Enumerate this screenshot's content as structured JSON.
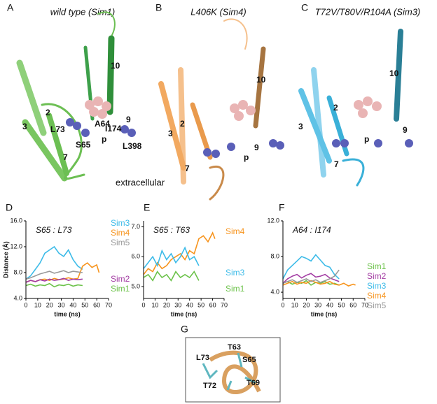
{
  "panels": [
    {
      "letter": "A",
      "title": "wild type (Sim1)",
      "labels": [
        "10",
        "2",
        "3",
        "I174",
        "A64",
        "L73",
        "S65",
        "7",
        "p",
        "9",
        "L398",
        "extracellular"
      ]
    },
    {
      "letter": "B",
      "title": "L406K (Sim4)",
      "labels": [
        "10",
        "3",
        "2",
        "9",
        "p",
        "7"
      ]
    },
    {
      "letter": "C",
      "title": "T72V/T80V/R104A (Sim3)",
      "labels": [
        "10",
        "2",
        "3",
        "p",
        "9",
        "7"
      ]
    },
    {
      "letter": "G",
      "labels": [
        "T63",
        "L73",
        "S65",
        "T72",
        "T69"
      ]
    }
  ],
  "chart_data": [
    {
      "type": "line",
      "letter": "D",
      "annotation": "S65 : L73",
      "ylabel": "Distance (Å)",
      "xlabel": "time (ns)",
      "xlim": [
        0,
        70
      ],
      "xticks": [
        0,
        10,
        20,
        30,
        40,
        50,
        60,
        70
      ],
      "ylim": [
        4,
        16
      ],
      "yticks": [
        {
          "value": 4,
          "label": "4.0"
        },
        {
          "value": 8,
          "label": "8.0"
        },
        {
          "value": 12,
          "label": "12.0"
        },
        {
          "value": 16,
          "label": "16.0"
        }
      ],
      "series": [
        {
          "name": "Sim3",
          "color": "#3cbbe8",
          "x": [
            0,
            4,
            8,
            12,
            16,
            20,
            24,
            28,
            32,
            36,
            40,
            44,
            48
          ],
          "values": [
            7.0,
            7.5,
            8.5,
            9.5,
            11.0,
            11.5,
            12.0,
            11.0,
            10.5,
            11.5,
            10.0,
            9.0,
            8.5
          ]
        },
        {
          "name": "Sim4",
          "color": "#f7941d",
          "x": [
            0,
            4,
            8,
            12,
            16,
            20,
            24,
            28,
            32,
            36,
            40,
            44,
            48,
            52,
            56,
            60,
            62
          ],
          "values": [
            6.5,
            6.8,
            6.6,
            6.9,
            7.0,
            6.8,
            7.1,
            6.9,
            7.0,
            7.2,
            7.0,
            7.1,
            9.0,
            9.5,
            8.8,
            9.2,
            8.0
          ]
        },
        {
          "name": "Sim5",
          "color": "#9a9a9a",
          "x": [
            0,
            4,
            8,
            12,
            16,
            20,
            24,
            28,
            32,
            36,
            40,
            44,
            48
          ],
          "values": [
            7.0,
            7.2,
            7.5,
            7.8,
            8.0,
            8.2,
            7.9,
            8.1,
            8.3,
            8.0,
            8.2,
            8.1,
            8.0
          ]
        },
        {
          "name": "Sim2",
          "color": "#a33ca3",
          "x": [
            0,
            4,
            8,
            12,
            16,
            20,
            24,
            28,
            32,
            36,
            40,
            44,
            48
          ],
          "values": [
            6.5,
            6.8,
            6.6,
            6.9,
            6.7,
            7.0,
            6.8,
            6.9,
            7.1,
            6.8,
            7.0,
            6.9,
            7.0
          ]
        },
        {
          "name": "Sim1",
          "color": "#6cc24a",
          "x": [
            0,
            4,
            8,
            12,
            16,
            20,
            24,
            28,
            32,
            36,
            40,
            44,
            48
          ],
          "values": [
            6.0,
            6.2,
            5.9,
            6.1,
            6.0,
            6.3,
            5.8,
            6.1,
            6.0,
            6.2,
            5.9,
            6.1,
            6.0
          ]
        }
      ]
    },
    {
      "type": "line",
      "letter": "E",
      "annotation": "S65 : T63",
      "xlabel": "time (ns)",
      "xlim": [
        0,
        70
      ],
      "xticks": [
        0,
        10,
        20,
        30,
        40,
        50,
        60,
        70
      ],
      "ylim": [
        4.6,
        7.2
      ],
      "yticks": [
        {
          "value": 5,
          "label": "5.0"
        },
        {
          "value": 6,
          "label": "6.0"
        },
        {
          "value": 7,
          "label": "7.0"
        }
      ],
      "series": [
        {
          "name": "Sim4",
          "color": "#f7941d",
          "x": [
            0,
            4,
            8,
            12,
            16,
            20,
            24,
            28,
            32,
            36,
            40,
            44,
            48,
            52,
            56,
            60,
            62
          ],
          "values": [
            5.4,
            5.6,
            5.5,
            5.8,
            5.6,
            5.7,
            5.9,
            6.0,
            6.1,
            5.9,
            6.2,
            6.1,
            6.6,
            6.7,
            6.5,
            6.8,
            6.6
          ]
        },
        {
          "name": "Sim3",
          "color": "#3cbbe8",
          "x": [
            0,
            4,
            8,
            12,
            16,
            20,
            24,
            28,
            32,
            36,
            40,
            44,
            48
          ],
          "values": [
            5.6,
            5.8,
            6.0,
            5.7,
            6.2,
            5.9,
            6.1,
            5.8,
            6.0,
            6.3,
            5.9,
            6.0,
            5.7
          ]
        },
        {
          "name": "Sim1",
          "color": "#6cc24a",
          "x": [
            0,
            4,
            8,
            12,
            16,
            20,
            24,
            28,
            32,
            36,
            40,
            44,
            48
          ],
          "values": [
            5.3,
            5.4,
            5.2,
            5.5,
            5.3,
            5.4,
            5.2,
            5.5,
            5.3,
            5.4,
            5.3,
            5.5,
            5.2
          ]
        }
      ]
    },
    {
      "type": "line",
      "letter": "F",
      "annotation": "A64 : I174",
      "xlabel": "time (ns)",
      "xlim": [
        0,
        70
      ],
      "xticks": [
        0,
        10,
        20,
        30,
        40,
        50,
        60,
        70
      ],
      "ylim": [
        3.3,
        12
      ],
      "yticks": [
        {
          "value": 4,
          "label": "4.0"
        },
        {
          "value": 8,
          "label": "8.0"
        },
        {
          "value": 12,
          "label": "12.0"
        }
      ],
      "series": [
        {
          "name": "Sim1",
          "color": "#6cc24a",
          "x": [
            0,
            4,
            8,
            12,
            16,
            20,
            24,
            28,
            32,
            36,
            40,
            44,
            48
          ],
          "values": [
            5.0,
            5.2,
            4.9,
            5.1,
            5.0,
            5.3,
            4.8,
            5.1,
            5.0,
            5.2,
            4.9,
            5.0,
            4.8
          ]
        },
        {
          "name": "Sim2",
          "color": "#a33ca3",
          "x": [
            0,
            4,
            8,
            12,
            16,
            20,
            24,
            28,
            32,
            36,
            40,
            44,
            48
          ],
          "values": [
            5.0,
            5.5,
            5.8,
            6.0,
            5.6,
            5.9,
            6.1,
            5.7,
            5.8,
            6.0,
            5.6,
            5.4,
            5.2
          ]
        },
        {
          "name": "Sim3",
          "color": "#3cbbe8",
          "x": [
            0,
            4,
            8,
            12,
            16,
            20,
            24,
            28,
            32,
            36,
            40,
            44,
            48
          ],
          "values": [
            5.5,
            6.5,
            7.0,
            7.5,
            8.0,
            7.8,
            7.5,
            8.2,
            7.6,
            7.0,
            6.8,
            6.0,
            5.5
          ]
        },
        {
          "name": "Sim4",
          "color": "#f7941d",
          "x": [
            0,
            4,
            8,
            12,
            16,
            20,
            24,
            28,
            32,
            36,
            40,
            44,
            48,
            52,
            56,
            60,
            62
          ],
          "values": [
            4.8,
            5.0,
            5.2,
            4.9,
            5.1,
            5.0,
            5.3,
            5.1,
            4.9,
            5.0,
            5.2,
            4.9,
            4.8,
            5.0,
            4.7,
            4.9,
            4.8
          ]
        },
        {
          "name": "Sim5",
          "color": "#9a9a9a",
          "x": [
            0,
            4,
            8,
            12,
            16,
            20,
            24,
            28,
            32,
            36,
            40,
            44,
            48
          ],
          "values": [
            5.0,
            5.2,
            5.4,
            5.1,
            5.3,
            5.5,
            5.2,
            5.4,
            5.1,
            5.3,
            5.5,
            5.8,
            6.5
          ]
        }
      ]
    }
  ]
}
